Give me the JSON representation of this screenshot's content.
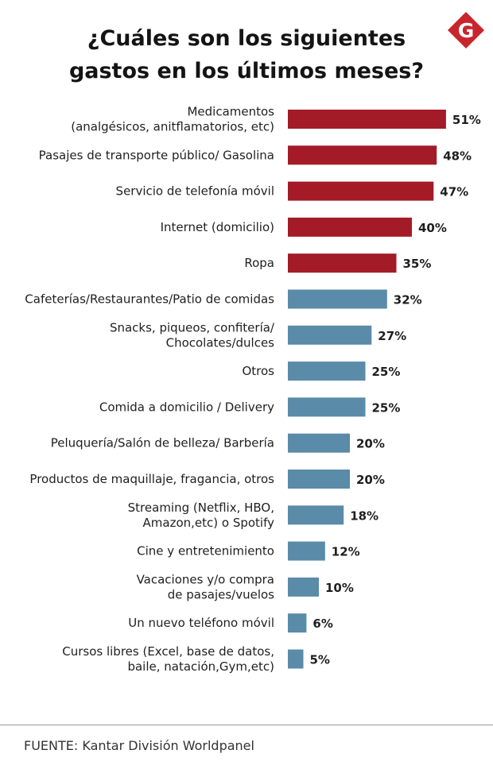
{
  "title_lines": [
    "¿Cuáles son los siguientes",
    "gastos en los últimos meses?"
  ],
  "logo": {
    "letter": "G",
    "color": "#c9252c"
  },
  "colors": {
    "highlight": "#a31b27",
    "normal": "#5a8ba8"
  },
  "chart_data": {
    "type": "bar",
    "orientation": "horizontal",
    "title": "¿Cuáles son los siguientes gastos en los últimos meses?",
    "xlim": [
      0,
      100
    ],
    "grid": false,
    "legend": "none",
    "value_suffix": "%",
    "categories": [
      [
        "Medicamentos",
        "(analgésicos, anitflamatorios, etc)"
      ],
      [
        "Pasajes de transporte público/ Gasolina"
      ],
      [
        "Servicio de telefonía móvil"
      ],
      [
        "Internet (domicilio)"
      ],
      [
        "Ropa"
      ],
      [
        "Cafeterías/Restaurantes/Patio de comidas"
      ],
      [
        "Snacks, piqueos, confitería/",
        "Chocolates/dulces"
      ],
      [
        "Otros"
      ],
      [
        "Comida a domicilio / Delivery"
      ],
      [
        "Peluquería/Salón de belleza/ Barbería"
      ],
      [
        "Productos de maquillaje, fragancia, otros"
      ],
      [
        "Streaming (Netflix, HBO,",
        "Amazon,etc) o Spotify"
      ],
      [
        "Cine y entretenimiento"
      ],
      [
        "Vacaciones y/o compra",
        "de pasajes/vuelos"
      ],
      [
        "Un nuevo teléfono móvil"
      ],
      [
        "Cursos libres (Excel, base de datos,",
        "baile, natación,Gym,etc)"
      ]
    ],
    "values": [
      51,
      48,
      47,
      40,
      35,
      32,
      27,
      25,
      25,
      20,
      20,
      18,
      12,
      10,
      6,
      5
    ],
    "value_labels": [
      "51%",
      "48%",
      "47%",
      "40%",
      "35%",
      "32%",
      "27%",
      "25%",
      "25%",
      "20%",
      "20%",
      "18%",
      "12%",
      "10%",
      "6%",
      "5%"
    ],
    "highlighted": [
      true,
      true,
      true,
      true,
      true,
      false,
      false,
      false,
      false,
      false,
      false,
      false,
      false,
      false,
      false,
      false
    ]
  },
  "source": "FUENTE: Kantar División Worldpanel"
}
